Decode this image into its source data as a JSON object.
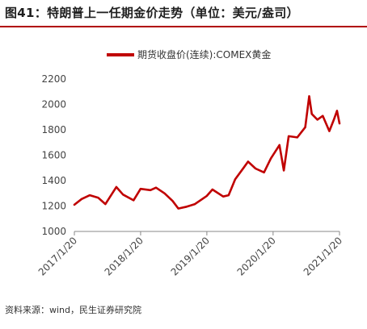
{
  "figure": {
    "title": "图41：特朗普上一任期金价走势（单位：美元/盎司）",
    "source": "资料来源：wind，民生证券研究院"
  },
  "colors": {
    "series": "#c00000",
    "title_rule": "#b00000",
    "axis": "#888888"
  },
  "chart_data": {
    "type": "line",
    "title": "",
    "xlabel": "",
    "ylabel": "",
    "ylim": [
      1000,
      2200
    ],
    "yticks": [
      1000,
      1200,
      1400,
      1600,
      1800,
      2000,
      2200
    ],
    "xticks": [
      "2017/1/20",
      "2018/1/20",
      "2019/1/20",
      "2020/1/20",
      "2021/1/20"
    ],
    "grid": false,
    "legend_position": "top-center",
    "series": [
      {
        "name": "期货收盘价(连续):COMEX黄金",
        "x": [
          "2017/1/20",
          "2017/3/1",
          "2017/4/15",
          "2017/6/1",
          "2017/7/10",
          "2017/9/8",
          "2017/10/15",
          "2017/12/12",
          "2018/1/20",
          "2018/3/15",
          "2018/4/15",
          "2018/6/1",
          "2018/7/15",
          "2018/8/16",
          "2018/10/1",
          "2018/11/15",
          "2019/1/20",
          "2019/2/20",
          "2019/4/20",
          "2019/5/20",
          "2019/6/25",
          "2019/8/10",
          "2019/9/4",
          "2019/10/15",
          "2019/12/1",
          "2020/1/8",
          "2020/2/24",
          "2020/3/19",
          "2020/4/15",
          "2020/6/1",
          "2020/7/15",
          "2020/8/6",
          "2020/8/20",
          "2020/9/20",
          "2020/10/20",
          "2020/11/25",
          "2020/12/20",
          "2021/1/6",
          "2021/1/20"
        ],
        "values": [
          1210,
          1255,
          1285,
          1265,
          1215,
          1350,
          1290,
          1245,
          1335,
          1325,
          1345,
          1300,
          1240,
          1180,
          1195,
          1215,
          1280,
          1330,
          1275,
          1285,
          1410,
          1500,
          1550,
          1495,
          1465,
          1575,
          1680,
          1480,
          1750,
          1740,
          1820,
          2065,
          1925,
          1880,
          1910,
          1790,
          1880,
          1950,
          1850
        ]
      }
    ]
  }
}
